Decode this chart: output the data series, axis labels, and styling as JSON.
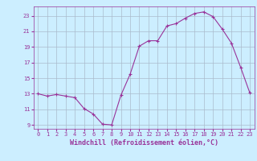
{
  "x": [
    0,
    1,
    2,
    3,
    4,
    5,
    6,
    7,
    8,
    9,
    10,
    11,
    12,
    13,
    14,
    15,
    16,
    17,
    18,
    19,
    20,
    21,
    22,
    23
  ],
  "y": [
    13.0,
    12.7,
    12.9,
    12.7,
    12.5,
    11.1,
    10.4,
    9.1,
    9.0,
    12.8,
    15.5,
    19.1,
    19.8,
    19.8,
    21.7,
    22.0,
    22.7,
    23.3,
    23.5,
    22.9,
    21.3,
    19.5,
    16.4,
    13.1
  ],
  "line_color": "#993399",
  "marker": "+",
  "marker_size": 3,
  "bg_color": "#cceeff",
  "grid_color": "#aabbcc",
  "xlabel": "Windchill (Refroidissement éolien,°C)",
  "xlabel_color": "#993399",
  "tick_color": "#993399",
  "ylim": [
    8.5,
    24.2
  ],
  "xlim": [
    -0.5,
    23.5
  ],
  "yticks": [
    9,
    11,
    13,
    15,
    17,
    19,
    21,
    23
  ],
  "xticks": [
    0,
    1,
    2,
    3,
    4,
    5,
    6,
    7,
    8,
    9,
    10,
    11,
    12,
    13,
    14,
    15,
    16,
    17,
    18,
    19,
    20,
    21,
    22,
    23
  ],
  "tick_fontsize": 5,
  "xlabel_fontsize": 6,
  "linewidth": 0.8
}
